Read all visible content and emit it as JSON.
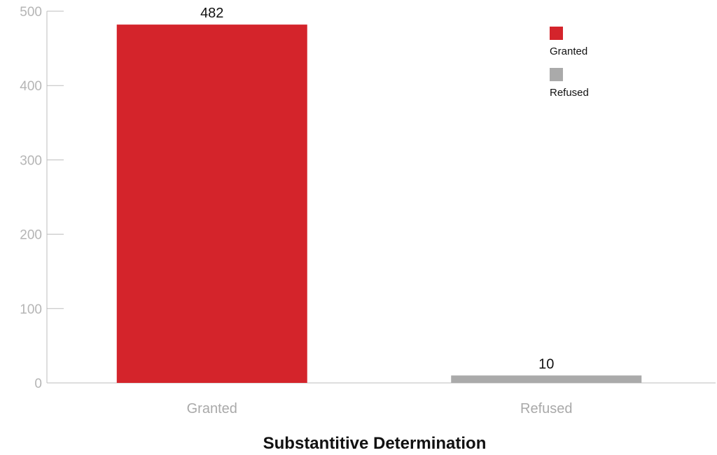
{
  "chart_data": {
    "type": "bar",
    "categories": [
      "Granted",
      "Refused"
    ],
    "values": [
      482,
      10
    ],
    "data_labels": [
      "482",
      "10"
    ],
    "colors": [
      "#d4242b",
      "#aaaaaa"
    ],
    "xlabel": "Substantitive Determination",
    "ylabel": "",
    "ylim": [
      0,
      500
    ],
    "yticks": [
      0,
      100,
      200,
      300,
      400,
      500
    ],
    "grid": false,
    "legend": {
      "placement": "top-right",
      "entries": [
        {
          "label": "Granted",
          "color": "#d4242b"
        },
        {
          "label": "Refused",
          "color": "#aaaaaa"
        }
      ]
    }
  }
}
